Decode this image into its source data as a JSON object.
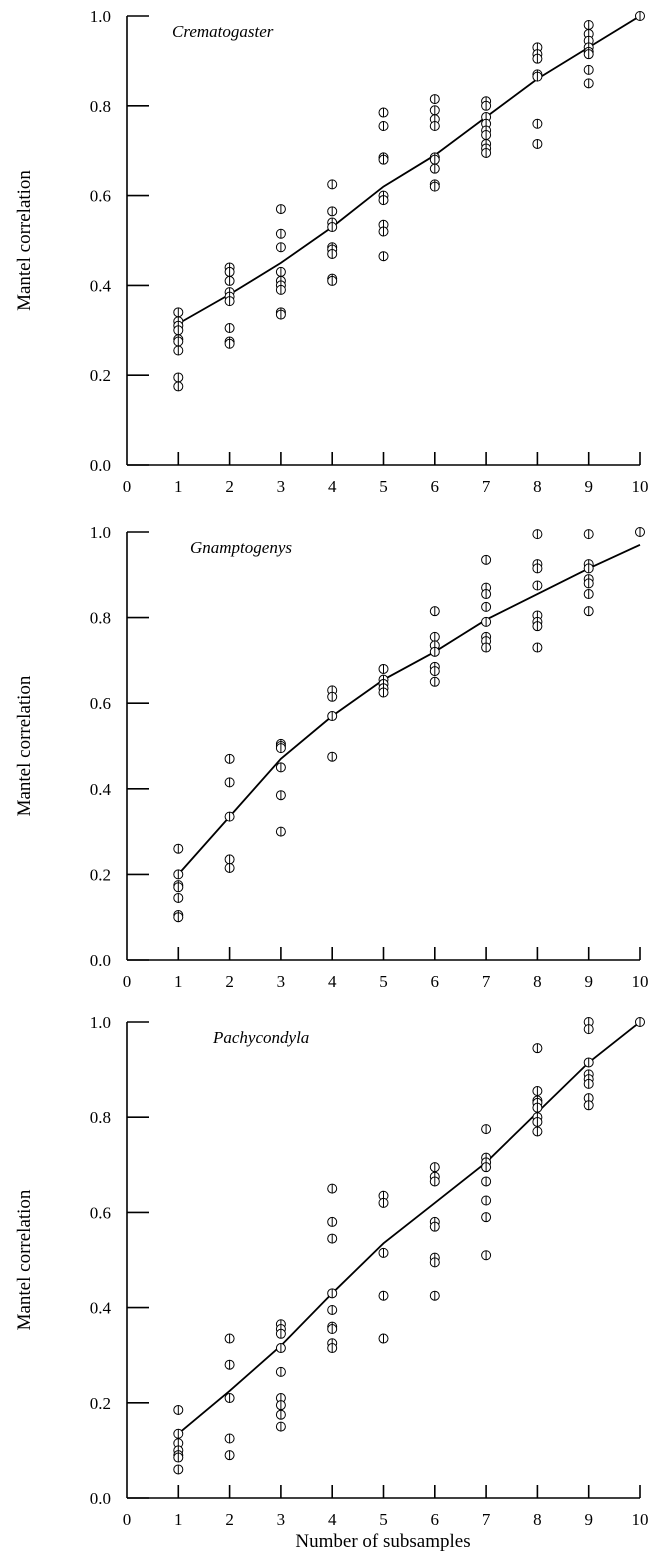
{
  "chart_data": [
    {
      "type": "scatter",
      "annotation": "Crematogaster",
      "xlabel": "",
      "ylabel": "Mantel correlation",
      "xlim": [
        0,
        10
      ],
      "ylim": [
        0,
        1.0
      ],
      "x_ticks": [
        "0",
        "1",
        "2",
        "3",
        "4",
        "5",
        "6",
        "7",
        "8",
        "9",
        "10"
      ],
      "y_ticks": [
        "0.0",
        "0.2",
        "0.4",
        "0.6",
        "0.8",
        "1.0"
      ],
      "grid": false,
      "series": [
        {
          "mode": "markers",
          "points": [
            [
              1,
              0.34
            ],
            [
              1,
              0.32
            ],
            [
              1,
              0.31
            ],
            [
              1,
              0.3
            ],
            [
              1,
              0.28
            ],
            [
              1,
              0.275
            ],
            [
              1,
              0.255
            ],
            [
              1,
              0.195
            ],
            [
              1,
              0.175
            ],
            [
              2,
              0.44
            ],
            [
              2,
              0.43
            ],
            [
              2,
              0.41
            ],
            [
              2,
              0.385
            ],
            [
              2,
              0.375
            ],
            [
              2,
              0.365
            ],
            [
              2,
              0.305
            ],
            [
              2,
              0.275
            ],
            [
              2,
              0.27
            ],
            [
              3,
              0.57
            ],
            [
              3,
              0.515
            ],
            [
              3,
              0.485
            ],
            [
              3,
              0.43
            ],
            [
              3,
              0.41
            ],
            [
              3,
              0.4
            ],
            [
              3,
              0.39
            ],
            [
              3,
              0.34
            ],
            [
              3,
              0.335
            ],
            [
              4,
              0.625
            ],
            [
              4,
              0.565
            ],
            [
              4,
              0.54
            ],
            [
              4,
              0.53
            ],
            [
              4,
              0.485
            ],
            [
              4,
              0.48
            ],
            [
              4,
              0.47
            ],
            [
              4,
              0.415
            ],
            [
              4,
              0.41
            ],
            [
              5,
              0.785
            ],
            [
              5,
              0.755
            ],
            [
              5,
              0.685
            ],
            [
              5,
              0.68
            ],
            [
              5,
              0.6
            ],
            [
              5,
              0.59
            ],
            [
              5,
              0.535
            ],
            [
              5,
              0.52
            ],
            [
              5,
              0.465
            ],
            [
              6,
              0.815
            ],
            [
              6,
              0.79
            ],
            [
              6,
              0.77
            ],
            [
              6,
              0.755
            ],
            [
              6,
              0.685
            ],
            [
              6,
              0.68
            ],
            [
              6,
              0.66
            ],
            [
              6,
              0.625
            ],
            [
              6,
              0.62
            ],
            [
              7,
              0.81
            ],
            [
              7,
              0.8
            ],
            [
              7,
              0.775
            ],
            [
              7,
              0.76
            ],
            [
              7,
              0.745
            ],
            [
              7,
              0.735
            ],
            [
              7,
              0.715
            ],
            [
              7,
              0.705
            ],
            [
              7,
              0.695
            ],
            [
              8,
              0.93
            ],
            [
              8,
              0.915
            ],
            [
              8,
              0.905
            ],
            [
              8,
              0.87
            ],
            [
              8,
              0.865
            ],
            [
              8,
              0.76
            ],
            [
              8,
              0.715
            ],
            [
              9,
              0.98
            ],
            [
              9,
              0.96
            ],
            [
              9,
              0.945
            ],
            [
              9,
              0.93
            ],
            [
              9,
              0.92
            ],
            [
              9,
              0.915
            ],
            [
              9,
              0.88
            ],
            [
              9,
              0.85
            ],
            [
              10,
              1.0
            ]
          ]
        },
        {
          "mode": "line",
          "x": [
            1,
            2,
            3,
            4,
            5,
            6,
            7,
            8,
            9,
            10
          ],
          "y": [
            0.315,
            0.38,
            0.45,
            0.53,
            0.62,
            0.69,
            0.775,
            0.86,
            0.93,
            1.0
          ]
        }
      ]
    },
    {
      "type": "scatter",
      "annotation": "Gnamptogenys",
      "xlabel": "",
      "ylabel": "Mantel correlation",
      "xlim": [
        0,
        10
      ],
      "ylim": [
        0,
        1.0
      ],
      "x_ticks": [
        "0",
        "1",
        "2",
        "3",
        "4",
        "5",
        "6",
        "7",
        "8",
        "9",
        "10"
      ],
      "y_ticks": [
        "0.0",
        "0.2",
        "0.4",
        "0.6",
        "0.8",
        "1.0"
      ],
      "grid": false,
      "series": [
        {
          "mode": "markers",
          "points": [
            [
              1,
              0.26
            ],
            [
              1,
              0.2
            ],
            [
              1,
              0.175
            ],
            [
              1,
              0.17
            ],
            [
              1,
              0.145
            ],
            [
              1,
              0.105
            ],
            [
              1,
              0.1
            ],
            [
              2,
              0.47
            ],
            [
              2,
              0.415
            ],
            [
              2,
              0.335
            ],
            [
              2,
              0.235
            ],
            [
              2,
              0.215
            ],
            [
              3,
              0.505
            ],
            [
              3,
              0.5
            ],
            [
              3,
              0.495
            ],
            [
              3,
              0.45
            ],
            [
              3,
              0.385
            ],
            [
              3,
              0.3
            ],
            [
              4,
              0.63
            ],
            [
              4,
              0.615
            ],
            [
              4,
              0.57
            ],
            [
              4,
              0.475
            ],
            [
              5,
              0.68
            ],
            [
              5,
              0.655
            ],
            [
              5,
              0.645
            ],
            [
              5,
              0.635
            ],
            [
              5,
              0.625
            ],
            [
              6,
              0.815
            ],
            [
              6,
              0.755
            ],
            [
              6,
              0.735
            ],
            [
              6,
              0.72
            ],
            [
              6,
              0.685
            ],
            [
              6,
              0.675
            ],
            [
              6,
              0.65
            ],
            [
              7,
              0.935
            ],
            [
              7,
              0.87
            ],
            [
              7,
              0.855
            ],
            [
              7,
              0.825
            ],
            [
              7,
              0.79
            ],
            [
              7,
              0.755
            ],
            [
              7,
              0.745
            ],
            [
              7,
              0.73
            ],
            [
              8,
              0.995
            ],
            [
              8,
              0.925
            ],
            [
              8,
              0.915
            ],
            [
              8,
              0.875
            ],
            [
              8,
              0.805
            ],
            [
              8,
              0.79
            ],
            [
              8,
              0.78
            ],
            [
              8,
              0.73
            ],
            [
              9,
              0.995
            ],
            [
              9,
              0.925
            ],
            [
              9,
              0.915
            ],
            [
              9,
              0.89
            ],
            [
              9,
              0.88
            ],
            [
              9,
              0.855
            ],
            [
              9,
              0.815
            ],
            [
              10,
              1.0
            ]
          ]
        },
        {
          "mode": "line",
          "x": [
            1,
            2,
            3,
            4,
            5,
            6,
            7,
            8,
            9,
            10
          ],
          "y": [
            0.2,
            0.335,
            0.47,
            0.57,
            0.655,
            0.72,
            0.795,
            0.855,
            0.915,
            0.97
          ]
        }
      ]
    },
    {
      "type": "scatter",
      "annotation": "Pachycondyla",
      "xlabel": "Number of subsamples",
      "ylabel": "Mantel correlation",
      "xlim": [
        0,
        10
      ],
      "ylim": [
        0,
        1.0
      ],
      "x_ticks": [
        "0",
        "1",
        "2",
        "3",
        "4",
        "5",
        "6",
        "7",
        "8",
        "9",
        "10"
      ],
      "y_ticks": [
        "0.0",
        "0.2",
        "0.4",
        "0.6",
        "0.8",
        "1.0"
      ],
      "grid": false,
      "series": [
        {
          "mode": "markers",
          "points": [
            [
              1,
              0.185
            ],
            [
              1,
              0.135
            ],
            [
              1,
              0.115
            ],
            [
              1,
              0.1
            ],
            [
              1,
              0.09
            ],
            [
              1,
              0.085
            ],
            [
              1,
              0.06
            ],
            [
              2,
              0.335
            ],
            [
              2,
              0.28
            ],
            [
              2,
              0.21
            ],
            [
              2,
              0.125
            ],
            [
              2,
              0.09
            ],
            [
              3,
              0.365
            ],
            [
              3,
              0.355
            ],
            [
              3,
              0.345
            ],
            [
              3,
              0.315
            ],
            [
              3,
              0.265
            ],
            [
              3,
              0.21
            ],
            [
              3,
              0.195
            ],
            [
              3,
              0.175
            ],
            [
              3,
              0.15
            ],
            [
              4,
              0.65
            ],
            [
              4,
              0.58
            ],
            [
              4,
              0.545
            ],
            [
              4,
              0.43
            ],
            [
              4,
              0.395
            ],
            [
              4,
              0.36
            ],
            [
              4,
              0.355
            ],
            [
              4,
              0.325
            ],
            [
              4,
              0.315
            ],
            [
              5,
              0.635
            ],
            [
              5,
              0.62
            ],
            [
              5,
              0.515
            ],
            [
              5,
              0.425
            ],
            [
              5,
              0.335
            ],
            [
              6,
              0.695
            ],
            [
              6,
              0.675
            ],
            [
              6,
              0.665
            ],
            [
              6,
              0.58
            ],
            [
              6,
              0.57
            ],
            [
              6,
              0.505
            ],
            [
              6,
              0.495
            ],
            [
              6,
              0.425
            ],
            [
              7,
              0.775
            ],
            [
              7,
              0.715
            ],
            [
              7,
              0.705
            ],
            [
              7,
              0.695
            ],
            [
              7,
              0.665
            ],
            [
              7,
              0.625
            ],
            [
              7,
              0.59
            ],
            [
              7,
              0.51
            ],
            [
              8,
              0.945
            ],
            [
              8,
              0.855
            ],
            [
              8,
              0.835
            ],
            [
              8,
              0.83
            ],
            [
              8,
              0.82
            ],
            [
              8,
              0.8
            ],
            [
              8,
              0.79
            ],
            [
              8,
              0.77
            ],
            [
              9,
              1.0
            ],
            [
              9,
              0.985
            ],
            [
              9,
              0.915
            ],
            [
              9,
              0.89
            ],
            [
              9,
              0.88
            ],
            [
              9,
              0.87
            ],
            [
              9,
              0.84
            ],
            [
              9,
              0.825
            ],
            [
              10,
              1.0
            ]
          ]
        },
        {
          "mode": "line",
          "x": [
            1,
            2,
            3,
            4,
            5,
            6,
            7,
            8,
            9,
            10
          ],
          "y": [
            0.135,
            0.225,
            0.32,
            0.43,
            0.535,
            0.62,
            0.705,
            0.81,
            0.915,
            1.0
          ]
        }
      ]
    }
  ]
}
